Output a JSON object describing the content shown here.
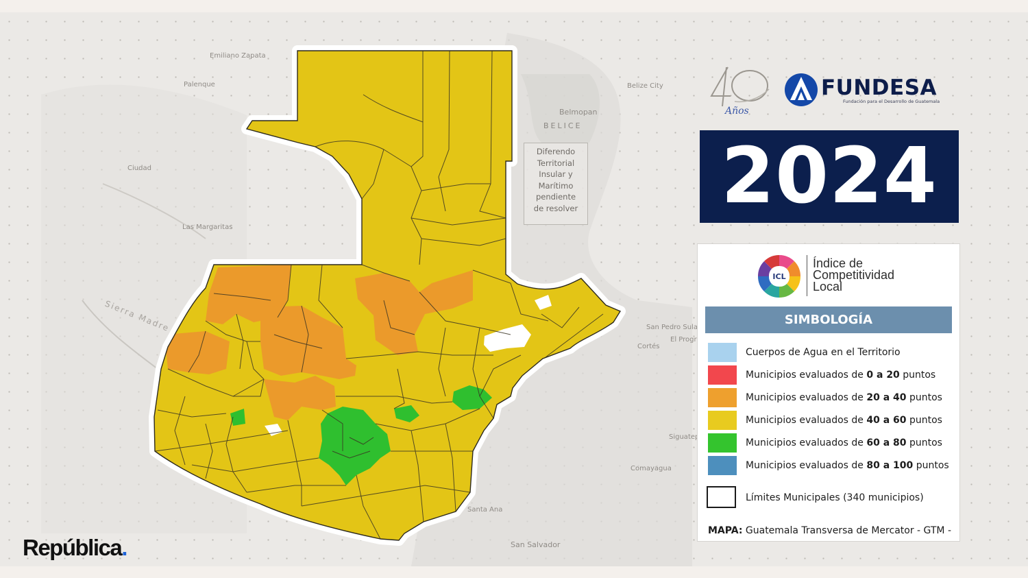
{
  "brand": {
    "anniversary_number": "40",
    "anniversary_word": "Años",
    "org_name": "FUNDESA",
    "org_tagline": "Fundación para el Desarrollo de Guatemala",
    "publisher": "República",
    "publisher_dot": "."
  },
  "year": "2024",
  "base_map_labels": {
    "emiliano_zapata": "Emiliano Zapata",
    "palenque": "Palenque",
    "belice_city": "Belize City",
    "belmopan": "Belmopan",
    "belice": "BELICE",
    "las_margaritas": "Las Margaritas",
    "sierra_madre": "Sierra Madre",
    "san_pedro_sula": "San Pedro Sula",
    "el_progreso": "El Progreso",
    "santa_ana": "Santa Ana",
    "san_salvador": "San Salvador",
    "ciudad": "Ciudad",
    "comayagua": "Comayagua",
    "siguatepeque": "Siguatepeque",
    "cortes": "Cortés"
  },
  "dispute_note": [
    "Diferendo",
    "Territorial",
    "Insular y",
    "Marítimo",
    "pendiente",
    "de resolver"
  ],
  "legend": {
    "icl_badge": "ICL",
    "icl_title_lines": [
      "Índice de",
      "Competitividad",
      "Local"
    ],
    "simbologia": "SIMBOLOGÍA",
    "items": [
      {
        "pre": "Cuerpos de Agua en el Territorio",
        "low": "",
        "mid": "",
        "high": "",
        "post": "",
        "color": "#a9d2ee"
      },
      {
        "pre": "Municipios evaluados de ",
        "low": "0",
        "mid": " a ",
        "high": "20",
        "post": " puntos",
        "color": "#f2474d"
      },
      {
        "pre": "Municipios evaluados de ",
        "low": "20",
        "mid": " a ",
        "high": "40",
        "post": " puntos",
        "color": "#eea02e"
      },
      {
        "pre": "Municipios evaluados de ",
        "low": "40",
        "mid": " a ",
        "high": "60",
        "post": " puntos",
        "color": "#e8cb1f"
      },
      {
        "pre": "Municipios evaluados de ",
        "low": "60",
        "mid": " a ",
        "high": "80",
        "post": " puntos",
        "color": "#34c42e"
      },
      {
        "pre": "Municipios evaluados de ",
        "low": "80",
        "mid": " a ",
        "high": "100",
        "post": " puntos",
        "color": "#4d8fbd"
      }
    ],
    "limits_label": "Límites Municipales (340 municipios)",
    "map_note_bold": "MAPA:",
    "map_note_text": " Guatemala Transversa de Mercator - GTM -"
  },
  "colors": {
    "yellow": "#e3c516",
    "orange": "#eb9a2b",
    "green": "#2fbf2f",
    "water": "#ffffff",
    "navy": "#0c1f4d",
    "simbologia_bar": "#6c8fad",
    "publisher_dot": "#1e63d8"
  }
}
